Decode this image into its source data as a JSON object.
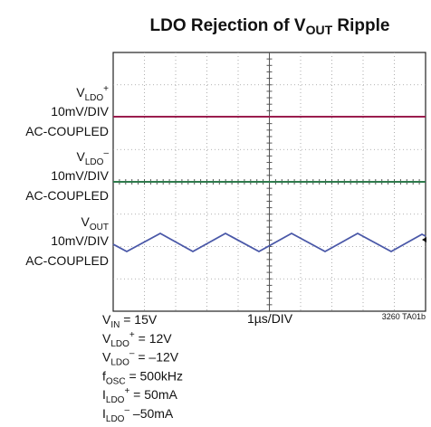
{
  "title": [
    "LDO Rejection of V",
    "OUT",
    " Ripple"
  ],
  "channels": [
    {
      "label": [
        "V",
        "LDO",
        "+"
      ],
      "scale": "10mV/DIV",
      "coupling": "AC-COUPLED"
    },
    {
      "label": [
        "V",
        "LDO",
        "–"
      ],
      "scale": "10mV/DIV",
      "coupling": "AC-COUPLED"
    },
    {
      "label": [
        "V",
        "OUT"
      ],
      "scale": "10mV/DIV",
      "coupling": "AC-COUPLED"
    }
  ],
  "timebase": "1µs/DIV",
  "figure_id": "3260 TA01b",
  "conditions": [
    [
      "V",
      "IN",
      " = 15V"
    ],
    [
      "V",
      "LDO",
      "+",
      " = 12V"
    ],
    [
      "V",
      "LDO",
      "–",
      " = –12V"
    ],
    [
      "f",
      "OSC",
      " = 500kHz"
    ],
    [
      "I",
      "LDO",
      "+",
      " = 50mA"
    ],
    [
      "I",
      "LDO",
      "–",
      " –50mA"
    ]
  ]
}
